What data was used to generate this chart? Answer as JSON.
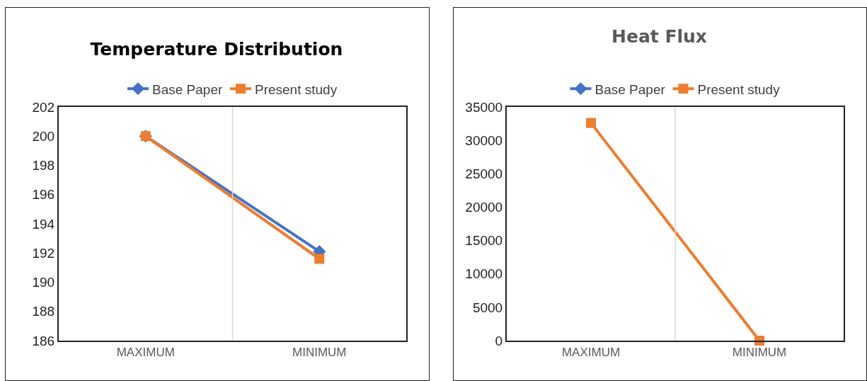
{
  "chart_data": [
    {
      "type": "line",
      "title": "Temperature Distribution",
      "categories": [
        "MAXIMUM",
        "MINIMUM"
      ],
      "series": [
        {
          "name": "Base Paper",
          "color": "#4472c4",
          "values": [
            200,
            192.1
          ],
          "marker": "diamond"
        },
        {
          "name": "Present study",
          "color": "#ed7d31",
          "values": [
            200,
            191.6
          ],
          "marker": "square"
        }
      ],
      "ylim": [
        186,
        202
      ],
      "yticks": [
        186,
        188,
        190,
        192,
        194,
        196,
        198,
        200,
        202
      ],
      "grid": "x",
      "legend": "top",
      "line_style": "solid"
    },
    {
      "type": "line",
      "title": "Heat Flux",
      "categories": [
        "MAXIMUM",
        "MINIMUM"
      ],
      "series": [
        {
          "name": "Base Paper",
          "color": "#4472c4",
          "values": [
            null,
            null
          ],
          "marker": "diamond"
        },
        {
          "name": "Present study",
          "color": "#ed7d31",
          "values": [
            32600,
            0
          ],
          "marker": "square"
        }
      ],
      "ylim": [
        0,
        35000
      ],
      "yticks": [
        0,
        5000,
        10000,
        15000,
        20000,
        25000,
        30000,
        35000
      ],
      "grid": "x",
      "legend": "top",
      "line_style": "solid"
    }
  ]
}
